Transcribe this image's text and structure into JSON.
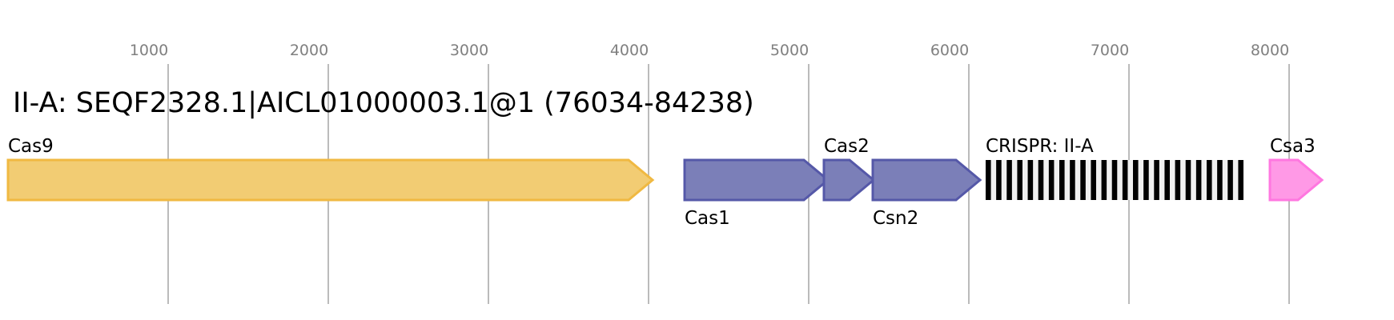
{
  "title": "II-A: SEQF2328.1|AICL01000003.1@1 (76034-84238)",
  "axis": {
    "ticks": [
      1000,
      2000,
      3000,
      4000,
      5000,
      6000,
      7000,
      8000
    ],
    "range": [
      0,
      8204
    ]
  },
  "colors": {
    "cas9_fill": "#f2cc73",
    "cas9_stroke": "#f0b942",
    "cas_fill": "#7b7fb8",
    "cas_stroke": "#5558a8",
    "csa3_fill": "#ff99e6",
    "csa3_stroke": "#ff77e0",
    "crispr_repeat": "#000000",
    "crispr_spacer": "#f0f0f0"
  },
  "genes": [
    {
      "label": "Cas9",
      "start": 0,
      "end": 4025,
      "label_pos": "above",
      "color": "cas9"
    },
    {
      "label": "Cas1",
      "start": 4225,
      "end": 5120,
      "label_pos": "below",
      "color": "cas"
    },
    {
      "label": "Cas2",
      "start": 5095,
      "end": 5405,
      "label_pos": "above",
      "color": "cas"
    },
    {
      "label": "Csn2",
      "start": 5400,
      "end": 6070,
      "label_pos": "below",
      "color": "cas"
    },
    {
      "label": "Csa3",
      "start": 7880,
      "end": 8205,
      "label_pos": "above",
      "color": "csa3"
    }
  ],
  "crispr": {
    "label": "CRISPR: II-A",
    "start": 6105,
    "end": 7715,
    "repeats": 25
  }
}
